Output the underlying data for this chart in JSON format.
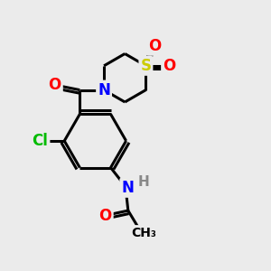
{
  "background_color": "#ebebeb",
  "bond_color": "#000000",
  "bond_width": 2.2,
  "atom_colors": {
    "O": "#ff0000",
    "N": "#0000ff",
    "Cl": "#00bb00",
    "S": "#cccc00",
    "C": "#000000",
    "H": "#888888"
  },
  "font_size": 12,
  "fig_size": [
    3.0,
    3.0
  ],
  "dpi": 100
}
